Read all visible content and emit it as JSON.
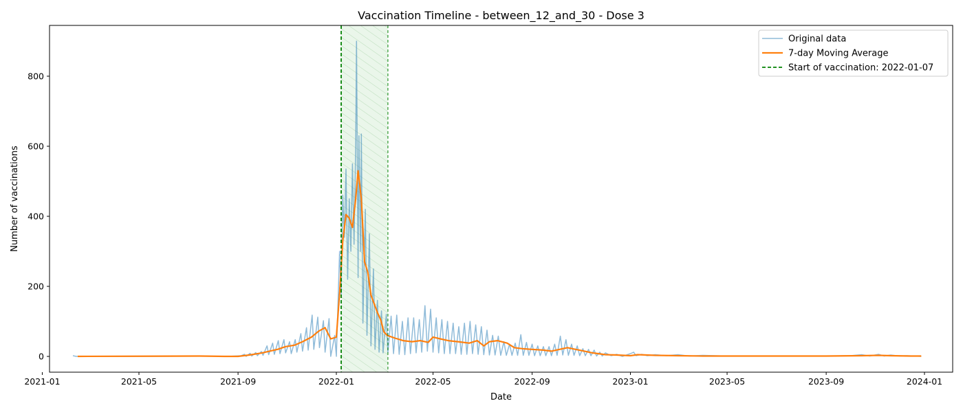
{
  "chart_data": {
    "type": "line",
    "title": "Vaccination Timeline - between_12_and_30 - Dose 3",
    "xlabel": "Date",
    "ylabel": "Number of vaccinations",
    "xlim": [
      "2021-01-10",
      "2024-02-05"
    ],
    "ylim": [
      -45,
      945
    ],
    "grid": false,
    "legend_position": "top-right",
    "x_ticks": [
      "2021-01",
      "2021-05",
      "2021-09",
      "2022-01",
      "2022-05",
      "2022-09",
      "2023-01",
      "2023-05",
      "2023-09",
      "2024-01"
    ],
    "y_ticks": [
      0,
      200,
      400,
      600,
      800
    ],
    "colors": {
      "original": "#1f77b4",
      "moving_average": "#ff7f0e",
      "vaccination_start": "#008000",
      "highlight_fill": "#e8f5e8"
    },
    "highlight_period": {
      "start": "2022-01-07",
      "end": "2022-03-06"
    },
    "vaccination_start_date": "2022-01-07",
    "series": [
      {
        "name": "Original data",
        "style": "line-translucent",
        "points": [
          [
            "2021-02-08",
            2
          ],
          [
            "2021-02-12",
            0
          ],
          [
            "2021-03-01",
            0
          ],
          [
            "2021-05-01",
            0
          ],
          [
            "2021-07-15",
            1
          ],
          [
            "2021-08-20",
            0
          ],
          [
            "2021-09-05",
            2
          ],
          [
            "2021-09-09",
            6
          ],
          [
            "2021-09-11",
            0
          ],
          [
            "2021-09-16",
            9
          ],
          [
            "2021-09-18",
            1
          ],
          [
            "2021-09-23",
            11
          ],
          [
            "2021-09-25",
            2
          ],
          [
            "2021-09-30",
            14
          ],
          [
            "2021-10-02",
            3
          ],
          [
            "2021-10-07",
            30
          ],
          [
            "2021-10-09",
            5
          ],
          [
            "2021-10-14",
            38
          ],
          [
            "2021-10-16",
            6
          ],
          [
            "2021-10-21",
            45
          ],
          [
            "2021-10-23",
            8
          ],
          [
            "2021-10-28",
            48
          ],
          [
            "2021-10-30",
            10
          ],
          [
            "2021-11-04",
            42
          ],
          [
            "2021-11-06",
            8
          ],
          [
            "2021-11-11",
            48
          ],
          [
            "2021-11-13",
            12
          ],
          [
            "2021-11-18",
            65
          ],
          [
            "2021-11-20",
            15
          ],
          [
            "2021-11-25",
            82
          ],
          [
            "2021-11-27",
            18
          ],
          [
            "2021-12-02",
            118
          ],
          [
            "2021-12-04",
            20
          ],
          [
            "2021-12-09",
            112
          ],
          [
            "2021-12-11",
            25
          ],
          [
            "2021-12-16",
            102
          ],
          [
            "2021-12-18",
            12
          ],
          [
            "2021-12-23",
            108
          ],
          [
            "2021-12-25",
            0
          ],
          [
            "2021-12-30",
            60
          ],
          [
            "2022-01-01",
            0
          ],
          [
            "2022-01-05",
            300
          ],
          [
            "2022-01-07",
            175
          ],
          [
            "2022-01-09",
            460
          ],
          [
            "2022-01-11",
            340
          ],
          [
            "2022-01-13",
            535
          ],
          [
            "2022-01-15",
            220
          ],
          [
            "2022-01-17",
            450
          ],
          [
            "2022-01-19",
            300
          ],
          [
            "2022-01-21",
            550
          ],
          [
            "2022-01-23",
            320
          ],
          [
            "2022-01-25",
            600
          ],
          [
            "2022-01-26",
            900
          ],
          [
            "2022-01-28",
            225
          ],
          [
            "2022-01-29",
            630
          ],
          [
            "2022-01-31",
            300
          ],
          [
            "2022-02-01",
            635
          ],
          [
            "2022-02-03",
            95
          ],
          [
            "2022-02-06",
            420
          ],
          [
            "2022-02-08",
            60
          ],
          [
            "2022-02-11",
            350
          ],
          [
            "2022-02-13",
            30
          ],
          [
            "2022-02-16",
            250
          ],
          [
            "2022-02-18",
            20
          ],
          [
            "2022-02-21",
            160
          ],
          [
            "2022-02-23",
            12
          ],
          [
            "2022-02-26",
            130
          ],
          [
            "2022-02-28",
            10
          ],
          [
            "2022-03-04",
            120
          ],
          [
            "2022-03-06",
            10
          ],
          [
            "2022-03-10",
            115
          ],
          [
            "2022-03-13",
            8
          ],
          [
            "2022-03-17",
            118
          ],
          [
            "2022-03-20",
            6
          ],
          [
            "2022-03-24",
            100
          ],
          [
            "2022-03-27",
            5
          ],
          [
            "2022-03-31",
            110
          ],
          [
            "2022-04-03",
            8
          ],
          [
            "2022-04-07",
            110
          ],
          [
            "2022-04-10",
            10
          ],
          [
            "2022-04-14",
            105
          ],
          [
            "2022-04-17",
            12
          ],
          [
            "2022-04-21",
            145
          ],
          [
            "2022-04-24",
            15
          ],
          [
            "2022-04-28",
            135
          ],
          [
            "2022-05-01",
            12
          ],
          [
            "2022-05-05",
            110
          ],
          [
            "2022-05-08",
            10
          ],
          [
            "2022-05-12",
            105
          ],
          [
            "2022-05-15",
            8
          ],
          [
            "2022-05-19",
            100
          ],
          [
            "2022-05-22",
            8
          ],
          [
            "2022-05-26",
            95
          ],
          [
            "2022-05-29",
            8
          ],
          [
            "2022-06-02",
            85
          ],
          [
            "2022-06-05",
            6
          ],
          [
            "2022-06-09",
            95
          ],
          [
            "2022-06-12",
            6
          ],
          [
            "2022-06-16",
            100
          ],
          [
            "2022-06-19",
            8
          ],
          [
            "2022-06-23",
            90
          ],
          [
            "2022-06-26",
            6
          ],
          [
            "2022-06-30",
            85
          ],
          [
            "2022-07-03",
            5
          ],
          [
            "2022-07-07",
            75
          ],
          [
            "2022-07-10",
            4
          ],
          [
            "2022-07-14",
            60
          ],
          [
            "2022-07-17",
            4
          ],
          [
            "2022-07-21",
            58
          ],
          [
            "2022-07-24",
            3
          ],
          [
            "2022-07-28",
            42
          ],
          [
            "2022-07-31",
            3
          ],
          [
            "2022-08-04",
            35
          ],
          [
            "2022-08-07",
            3
          ],
          [
            "2022-08-11",
            38
          ],
          [
            "2022-08-14",
            3
          ],
          [
            "2022-08-18",
            62
          ],
          [
            "2022-08-21",
            3
          ],
          [
            "2022-08-25",
            40
          ],
          [
            "2022-08-28",
            3
          ],
          [
            "2022-09-01",
            35
          ],
          [
            "2022-09-04",
            2
          ],
          [
            "2022-09-08",
            30
          ],
          [
            "2022-09-11",
            2
          ],
          [
            "2022-09-15",
            28
          ],
          [
            "2022-09-18",
            2
          ],
          [
            "2022-09-22",
            28
          ],
          [
            "2022-09-25",
            2
          ],
          [
            "2022-09-29",
            35
          ],
          [
            "2022-10-02",
            3
          ],
          [
            "2022-10-06",
            58
          ],
          [
            "2022-10-09",
            4
          ],
          [
            "2022-10-13",
            48
          ],
          [
            "2022-10-16",
            3
          ],
          [
            "2022-10-20",
            35
          ],
          [
            "2022-10-23",
            3
          ],
          [
            "2022-10-27",
            30
          ],
          [
            "2022-10-30",
            2
          ],
          [
            "2022-11-03",
            22
          ],
          [
            "2022-11-06",
            2
          ],
          [
            "2022-11-10",
            20
          ],
          [
            "2022-11-13",
            2
          ],
          [
            "2022-11-17",
            18
          ],
          [
            "2022-11-20",
            1
          ],
          [
            "2022-11-24",
            12
          ],
          [
            "2022-11-27",
            1
          ],
          [
            "2022-12-01",
            10
          ],
          [
            "2022-12-08",
            2
          ],
          [
            "2022-12-15",
            6
          ],
          [
            "2022-12-22",
            0
          ],
          [
            "2023-01-01",
            8
          ],
          [
            "2023-01-05",
            12
          ],
          [
            "2023-01-08",
            2
          ],
          [
            "2023-01-15",
            6
          ],
          [
            "2023-01-22",
            2
          ],
          [
            "2023-02-01",
            5
          ],
          [
            "2023-02-15",
            2
          ],
          [
            "2023-03-01",
            5
          ],
          [
            "2023-03-15",
            1
          ],
          [
            "2023-04-01",
            3
          ],
          [
            "2023-05-01",
            1
          ],
          [
            "2023-06-01",
            1
          ],
          [
            "2023-07-01",
            1
          ],
          [
            "2023-08-01",
            1
          ],
          [
            "2023-09-01",
            1
          ],
          [
            "2023-10-01",
            2
          ],
          [
            "2023-10-15",
            5
          ],
          [
            "2023-10-25",
            1
          ],
          [
            "2023-11-05",
            6
          ],
          [
            "2023-11-12",
            1
          ],
          [
            "2023-11-20",
            4
          ],
          [
            "2023-12-01",
            1
          ],
          [
            "2023-12-10",
            2
          ],
          [
            "2023-12-20",
            1
          ],
          [
            "2023-12-28",
            0
          ]
        ]
      },
      {
        "name": "7-day Moving Average",
        "style": "line-solid",
        "points": [
          [
            "2021-02-14",
            0
          ],
          [
            "2021-07-15",
            1
          ],
          [
            "2021-08-15",
            0
          ],
          [
            "2021-09-01",
            0
          ],
          [
            "2021-09-15",
            4
          ],
          [
            "2021-10-01",
            10
          ],
          [
            "2021-10-10",
            15
          ],
          [
            "2021-10-20",
            20
          ],
          [
            "2021-10-30",
            28
          ],
          [
            "2021-11-10",
            32
          ],
          [
            "2021-11-20",
            42
          ],
          [
            "2021-12-01",
            55
          ],
          [
            "2021-12-10",
            72
          ],
          [
            "2021-12-18",
            82
          ],
          [
            "2021-12-25",
            50
          ],
          [
            "2022-01-01",
            55
          ],
          [
            "2022-01-05",
            180
          ],
          [
            "2022-01-09",
            330
          ],
          [
            "2022-01-13",
            405
          ],
          [
            "2022-01-17",
            395
          ],
          [
            "2022-01-21",
            368
          ],
          [
            "2022-01-25",
            450
          ],
          [
            "2022-01-28",
            530
          ],
          [
            "2022-02-01",
            450
          ],
          [
            "2022-02-05",
            270
          ],
          [
            "2022-02-09",
            240
          ],
          [
            "2022-02-13",
            175
          ],
          [
            "2022-02-17",
            150
          ],
          [
            "2022-02-21",
            125
          ],
          [
            "2022-02-25",
            105
          ],
          [
            "2022-03-01",
            70
          ],
          [
            "2022-03-05",
            60
          ],
          [
            "2022-03-15",
            52
          ],
          [
            "2022-03-25",
            45
          ],
          [
            "2022-04-05",
            42
          ],
          [
            "2022-04-15",
            45
          ],
          [
            "2022-04-25",
            40
          ],
          [
            "2022-05-01",
            55
          ],
          [
            "2022-05-10",
            50
          ],
          [
            "2022-05-20",
            45
          ],
          [
            "2022-06-01",
            42
          ],
          [
            "2022-06-15",
            38
          ],
          [
            "2022-06-25",
            45
          ],
          [
            "2022-07-03",
            30
          ],
          [
            "2022-07-10",
            42
          ],
          [
            "2022-07-20",
            45
          ],
          [
            "2022-08-01",
            38
          ],
          [
            "2022-08-10",
            25
          ],
          [
            "2022-08-20",
            22
          ],
          [
            "2022-09-01",
            20
          ],
          [
            "2022-09-15",
            18
          ],
          [
            "2022-09-25",
            15
          ],
          [
            "2022-10-05",
            20
          ],
          [
            "2022-10-15",
            25
          ],
          [
            "2022-10-25",
            20
          ],
          [
            "2022-11-05",
            15
          ],
          [
            "2022-11-15",
            10
          ],
          [
            "2022-12-01",
            5
          ],
          [
            "2022-12-15",
            4
          ],
          [
            "2023-01-01",
            2
          ],
          [
            "2023-01-10",
            5
          ],
          [
            "2023-02-01",
            3
          ],
          [
            "2023-03-01",
            2
          ],
          [
            "2023-04-01",
            1
          ],
          [
            "2023-06-01",
            1
          ],
          [
            "2023-09-01",
            1
          ],
          [
            "2023-10-15",
            2
          ],
          [
            "2023-11-05",
            3
          ],
          [
            "2023-11-20",
            2
          ],
          [
            "2023-12-15",
            1
          ],
          [
            "2023-12-28",
            1
          ]
        ]
      }
    ],
    "legend": [
      {
        "label": "Original data",
        "style": "line-translucent"
      },
      {
        "label": "7-day Moving Average",
        "style": "line-solid"
      },
      {
        "label": "Start of vaccination: 2022-01-07",
        "style": "dashed"
      }
    ]
  }
}
